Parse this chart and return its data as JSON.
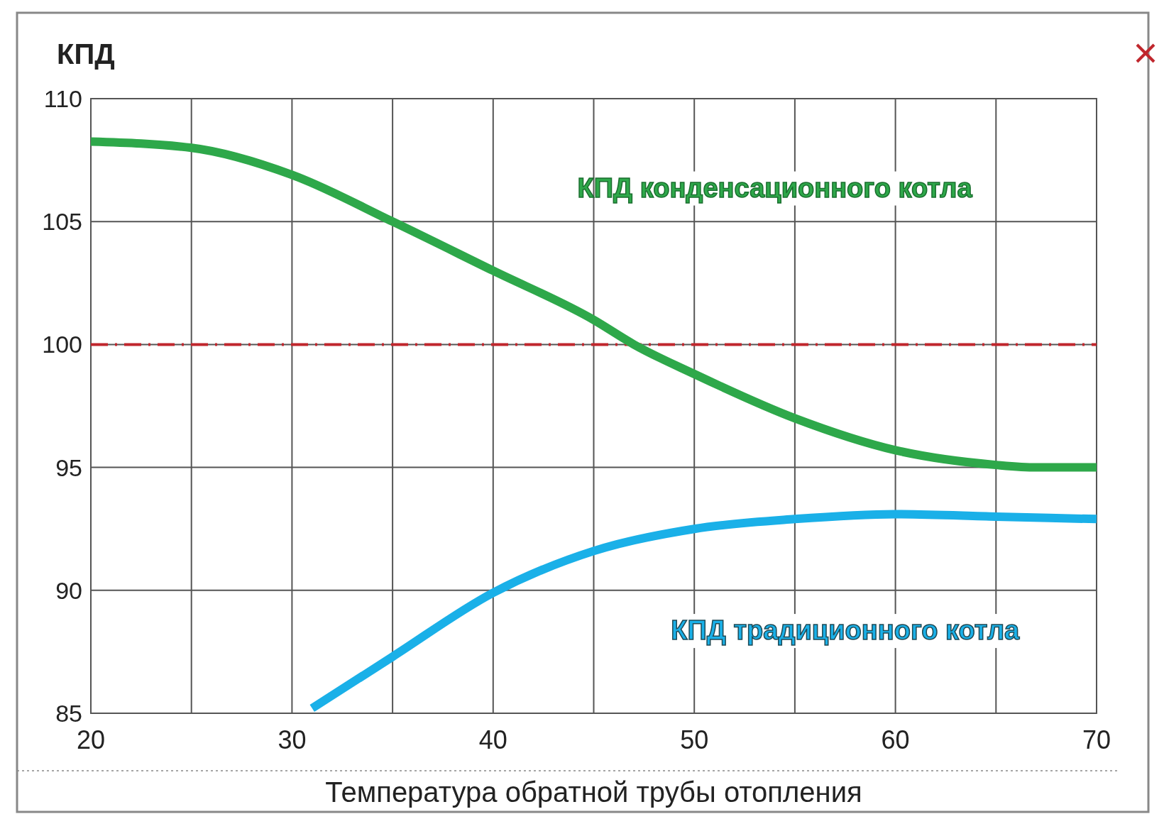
{
  "chart_data": {
    "type": "line",
    "xlabel": "Температура обратной трубы отопления",
    "ylabel": "КПД",
    "xlim": [
      20,
      70
    ],
    "ylim": [
      85,
      110
    ],
    "xticks": [
      20,
      {
        "value": 25,
        "label": null
      },
      30,
      {
        "value": 35,
        "label": null
      },
      40,
      {
        "value": 45,
        "label": null
      },
      50,
      {
        "value": 55,
        "label": null
      },
      60,
      {
        "value": 65,
        "label": null
      },
      70
    ],
    "yticks": [
      85,
      90,
      95,
      100,
      105,
      110
    ],
    "grid": true,
    "line_style": "solid",
    "marker": "none",
    "series": [
      {
        "name": "КПД конденсационного котла",
        "color": "#2ea84a",
        "x": [
          20,
          25,
          30,
          35,
          40,
          45,
          47,
          50,
          55,
          60,
          65,
          67,
          70
        ],
        "values": [
          108.25,
          108.0,
          106.9,
          105.0,
          103.0,
          101.0,
          100.0,
          98.8,
          97.0,
          95.7,
          95.1,
          95.0,
          95.0
        ]
      },
      {
        "name": "КПД традиционного котла",
        "color": "#1ab0e8",
        "x": [
          31,
          35,
          40,
          45,
          50,
          55,
          60,
          65,
          70
        ],
        "values": [
          85.2,
          87.3,
          89.9,
          91.6,
          92.5,
          92.9,
          93.1,
          93.0,
          92.9
        ]
      }
    ],
    "ref_lines": [
      {
        "axis": "y",
        "value": 100,
        "label": null,
        "color": "#c0272d",
        "line_style": "dashdot"
      }
    ]
  }
}
